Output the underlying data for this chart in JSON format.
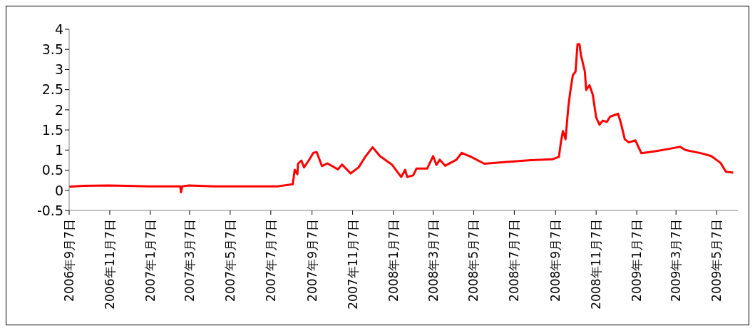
{
  "chart_data": {
    "type": "line",
    "x": [
      "2006-09-07",
      "2006-09-28",
      "2006-11-05",
      "2006-12-02",
      "2007-01-03",
      "2007-02-09",
      "2007-02-21",
      "2007-02-22",
      "2007-02-24",
      "2007-03-06",
      "2007-04-13",
      "2007-07-18",
      "2007-08-09",
      "2007-08-12",
      "2007-08-16",
      "2007-08-17",
      "2007-08-22",
      "2007-08-26",
      "2007-09-02",
      "2007-09-09",
      "2007-09-14",
      "2007-09-22",
      "2007-09-30",
      "2007-10-16",
      "2007-10-22",
      "2007-11-04",
      "2007-11-16",
      "2007-11-26",
      "2007-12-07",
      "2007-12-18",
      "2008-01-05",
      "2008-01-19",
      "2008-01-25",
      "2008-01-28",
      "2008-02-06",
      "2008-02-11",
      "2008-02-27",
      "2008-03-07",
      "2008-03-12",
      "2008-03-17",
      "2008-03-25",
      "2008-04-11",
      "2008-04-19",
      "2008-05-03",
      "2008-05-23",
      "2008-06-15",
      "2008-08-01",
      "2008-09-02",
      "2008-09-12",
      "2008-09-15",
      "2008-09-18",
      "2008-09-22",
      "2008-09-26",
      "2008-09-29",
      "2008-10-03",
      "2008-10-07",
      "2008-10-10",
      "2008-10-13",
      "2008-10-15",
      "2008-10-21",
      "2008-10-23",
      "2008-10-28",
      "2008-11-02",
      "2008-11-07",
      "2008-11-12",
      "2008-11-17",
      "2008-11-23",
      "2008-11-28",
      "2008-12-10",
      "2008-12-14",
      "2008-12-20",
      "2008-12-26",
      "2009-01-05",
      "2009-01-14",
      "2009-02-04",
      "2009-02-25",
      "2009-03-13",
      "2009-03-21",
      "2009-04-14",
      "2009-04-29",
      "2009-05-13",
      "2009-05-21",
      "2009-06-01"
    ],
    "series": [
      {
        "color": "#ff0000",
        "values": [
          0.09,
          0.11,
          0.12,
          0.11,
          0.1,
          0.1,
          0.1,
          -0.05,
          0.1,
          0.12,
          0.1,
          0.1,
          0.15,
          0.51,
          0.4,
          0.66,
          0.74,
          0.57,
          0.74,
          0.93,
          0.95,
          0.6,
          0.67,
          0.52,
          0.64,
          0.42,
          0.57,
          0.83,
          1.07,
          0.85,
          0.64,
          0.33,
          0.51,
          0.33,
          0.37,
          0.54,
          0.54,
          0.85,
          0.63,
          0.76,
          0.61,
          0.76,
          0.93,
          0.83,
          0.66,
          0.69,
          0.75,
          0.77,
          0.83,
          1.19,
          1.47,
          1.27,
          2.04,
          2.44,
          2.86,
          2.95,
          3.63,
          3.63,
          3.37,
          2.95,
          2.49,
          2.61,
          2.37,
          1.81,
          1.63,
          1.73,
          1.7,
          1.83,
          1.9,
          1.68,
          1.27,
          1.19,
          1.24,
          0.92,
          0.97,
          1.03,
          1.08,
          1.0,
          0.92,
          0.85,
          0.68,
          0.46,
          0.44
        ]
      }
    ],
    "xlim": [
      "2006-09-07",
      "2009-06-08"
    ],
    "xticks": [
      {
        "value": "2006-09-07",
        "label": "2006年9月7日"
      },
      {
        "value": "2006-11-07",
        "label": "2006年11月7日"
      },
      {
        "value": "2007-01-07",
        "label": "2007年1月7日"
      },
      {
        "value": "2007-03-07",
        "label": "2007年3月7日"
      },
      {
        "value": "2007-05-07",
        "label": "2007年5月7日"
      },
      {
        "value": "2007-07-07",
        "label": "2007年7月7日"
      },
      {
        "value": "2007-09-07",
        "label": "2007年9月7日"
      },
      {
        "value": "2007-11-07",
        "label": "2007年11月7日"
      },
      {
        "value": "2008-01-07",
        "label": "2008年1月7日"
      },
      {
        "value": "2008-03-07",
        "label": "2008年3月7日"
      },
      {
        "value": "2008-05-07",
        "label": "2008年5月7日"
      },
      {
        "value": "2008-07-07",
        "label": "2008年7月7日"
      },
      {
        "value": "2008-09-07",
        "label": "2008年9月7日"
      },
      {
        "value": "2008-11-07",
        "label": "2008年11月7日"
      },
      {
        "value": "2009-01-07",
        "label": "2009年1月7日"
      },
      {
        "value": "2009-03-07",
        "label": "2009年3月7日"
      },
      {
        "value": "2009-05-07",
        "label": "2009年5月7日"
      }
    ],
    "ylim": [
      -0.5,
      4
    ],
    "yticks": [
      -0.5,
      0,
      0.5,
      1,
      1.5,
      2,
      2.5,
      3,
      3.5,
      4
    ],
    "line_style": "solid",
    "marker": "none",
    "grid": false,
    "legend": false
  }
}
